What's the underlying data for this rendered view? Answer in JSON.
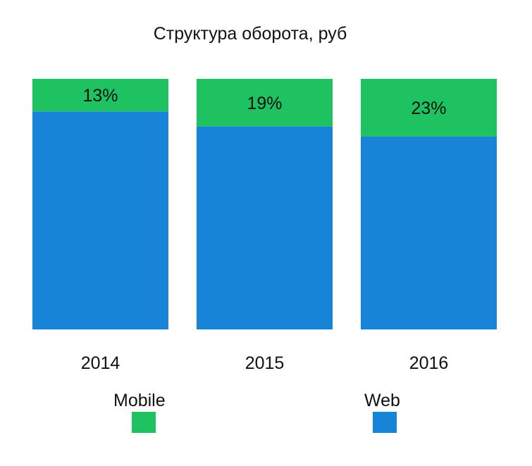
{
  "chart_data": {
    "type": "bar",
    "stacked": true,
    "normalized": true,
    "title": "Структура оборота, руб",
    "categories": [
      "2014",
      "2015",
      "2016"
    ],
    "series": [
      {
        "name": "Mobile",
        "values": [
          13,
          19,
          23
        ],
        "color": "#1fc260",
        "labels": [
          "13%",
          "19%",
          "23%"
        ]
      },
      {
        "name": "Web",
        "values": [
          87,
          81,
          77
        ],
        "color": "#1784d8"
      }
    ],
    "ylim": [
      0,
      100
    ],
    "grid": false,
    "legend": "bottom"
  }
}
